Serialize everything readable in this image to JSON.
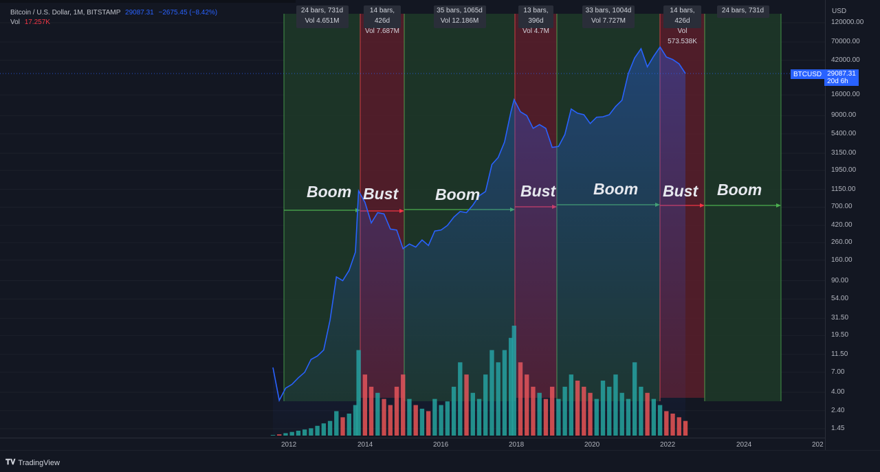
{
  "legend": {
    "symbol": "Bitcoin / U.S. Dollar, 1M, BITSTAMP",
    "price": "29087.31",
    "change": "−2675.45 (−8.42%)",
    "volume_label": "Vol",
    "volume_value": "17.257K"
  },
  "price_axis": {
    "currency": "USD",
    "ticks": [
      "120000.00",
      "70000.00",
      "42000.00",
      "16000.00",
      "9000.00",
      "5400.00",
      "3150.00",
      "1950.00",
      "1150.00",
      "700.00",
      "420.00",
      "260.00",
      "160.00",
      "90.00",
      "54.00",
      "31.50",
      "19.50",
      "11.50",
      "7.00",
      "4.00",
      "2.40",
      "1.45"
    ]
  },
  "price_tag": {
    "ticker": "BTCUSD",
    "price": "29087.31",
    "countdown": "20d 6h"
  },
  "time_axis": {
    "ticks": [
      "2012",
      "2014",
      "2016",
      "2018",
      "2020",
      "2022",
      "2024",
      "202"
    ]
  },
  "ranges": [
    {
      "bars": "24 bars, 731d",
      "vol": "Vol 4.651M",
      "phase": "Boom",
      "color": "#4caf50"
    },
    {
      "bars": "14 bars, 426d",
      "vol": "Vol 7.687M",
      "phase": "Bust",
      "color": "#f23645"
    },
    {
      "bars": "35 bars, 1065d",
      "vol": "Vol 12.186M",
      "phase": "Boom",
      "color": "#4caf50"
    },
    {
      "bars": "13 bars, 396d",
      "vol": "Vol 4.7M",
      "phase": "Bust",
      "color": "#f23645"
    },
    {
      "bars": "33 bars, 1004d",
      "vol": "Vol 7.727M",
      "phase": "Boom",
      "color": "#4caf50"
    },
    {
      "bars": "14 bars, 426d",
      "vol": "Vol 573.538K",
      "phase": "Bust",
      "color": "#f23645"
    },
    {
      "bars": "24 bars, 731d",
      "vol": "",
      "phase": "Boom",
      "color": "#4caf50"
    }
  ],
  "brand": {
    "name": "TradingView"
  },
  "colors": {
    "line": "#2962ff",
    "up_volume": "#26a69a",
    "down_volume": "#ef5350",
    "boom_fill": "#1e3a26",
    "bust_fill": "#4a1a22"
  },
  "chart_data": {
    "type": "line",
    "title": "Bitcoin / U.S. Dollar, 1M, BITSTAMP",
    "y_scale": "log",
    "ylim": [
      1.2,
      130000
    ],
    "x": [
      "2011-08",
      "2011-10",
      "2011-12",
      "2012-02",
      "2012-04",
      "2012-06",
      "2012-08",
      "2012-10",
      "2012-12",
      "2013-02",
      "2013-04",
      "2013-06",
      "2013-08",
      "2013-10",
      "2013-11",
      "2014-01",
      "2014-03",
      "2014-05",
      "2014-07",
      "2014-09",
      "2014-11",
      "2015-01",
      "2015-03",
      "2015-05",
      "2015-07",
      "2015-09",
      "2015-11",
      "2016-01",
      "2016-03",
      "2016-05",
      "2016-07",
      "2016-09",
      "2016-11",
      "2017-01",
      "2017-03",
      "2017-05",
      "2017-07",
      "2017-09",
      "2017-11",
      "2017-12",
      "2018-02",
      "2018-04",
      "2018-06",
      "2018-08",
      "2018-10",
      "2018-12",
      "2019-02",
      "2019-04",
      "2019-06",
      "2019-08",
      "2019-10",
      "2019-12",
      "2020-02",
      "2020-04",
      "2020-06",
      "2020-08",
      "2020-10",
      "2020-12",
      "2021-02",
      "2021-04",
      "2021-06",
      "2021-08",
      "2021-10",
      "2021-12",
      "2022-02",
      "2022-04",
      "2022-06"
    ],
    "series": [
      {
        "values": [
          8,
          3.2,
          4.5,
          5,
          6,
          7,
          10,
          11,
          13,
          30,
          100,
          90,
          120,
          200,
          1100,
          800,
          450,
          600,
          580,
          380,
          370,
          220,
          250,
          230,
          280,
          240,
          360,
          370,
          420,
          530,
          620,
          600,
          740,
          960,
          1080,
          2300,
          2800,
          4300,
          10000,
          14000,
          10000,
          9000,
          6300,
          7000,
          6300,
          3700,
          3800,
          5300,
          10800,
          9600,
          9200,
          7200,
          8600,
          8700,
          9200,
          11600,
          13800,
          29000,
          45000,
          58000,
          35000,
          47000,
          61000,
          46000,
          43000,
          38000,
          29087
        ]
      }
    ],
    "volume": [
      0.05,
      0.1,
      0.2,
      0.3,
      0.4,
      0.5,
      0.6,
      0.8,
      1,
      1.2,
      2,
      1.5,
      1.8,
      2.5,
      7,
      5,
      4,
      3.5,
      3,
      2.5,
      4,
      5,
      3,
      2.5,
      2.2,
      2,
      3,
      2.5,
      2.8,
      4,
      6,
      5,
      3.5,
      3,
      5,
      7,
      6,
      7,
      8,
      9,
      6,
      5,
      4,
      3.5,
      3,
      4,
      3,
      4,
      5,
      4.5,
      4,
      3.5,
      3,
      4.5,
      4,
      5,
      3.5,
      3,
      6,
      4,
      3.5,
      3,
      2.5,
      2,
      1.8,
      1.5,
      1.2
    ]
  }
}
